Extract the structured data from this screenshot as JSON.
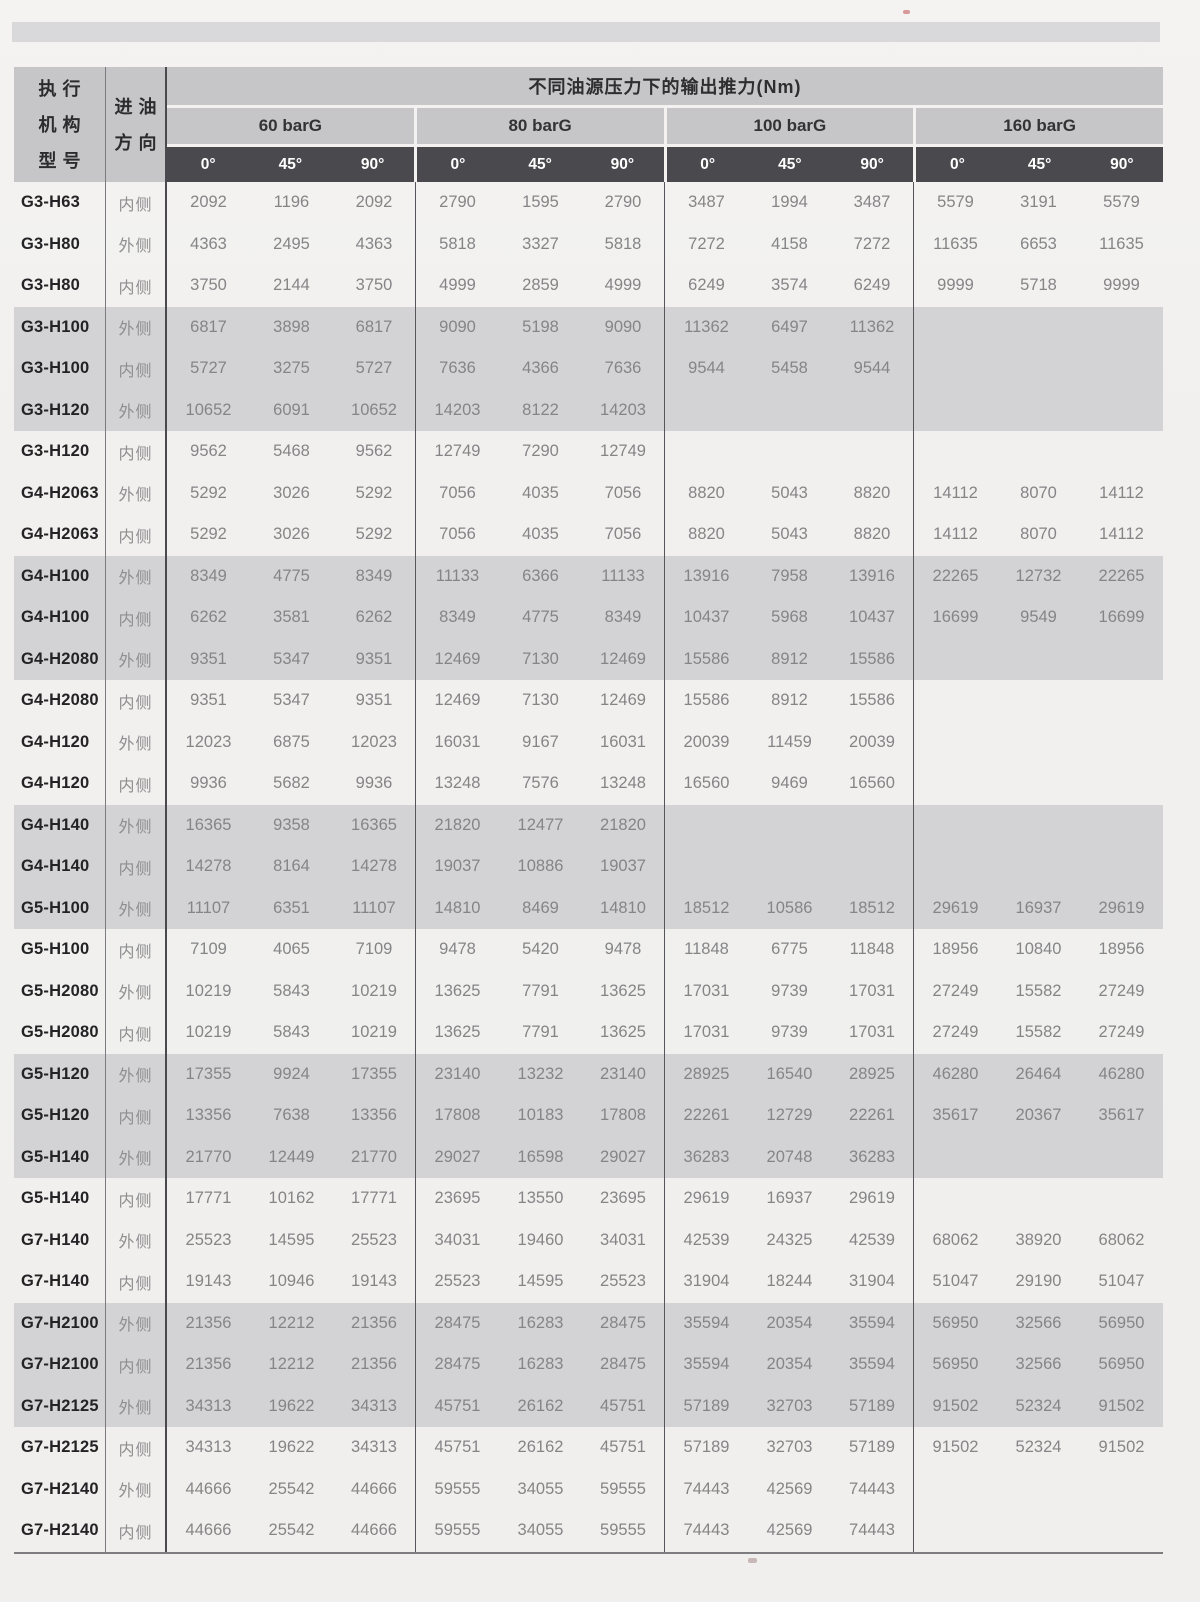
{
  "page": {
    "table_title": "不同油源压力下的输出推力(Nm)",
    "col1_header_lines": [
      "执行",
      "机构",
      "型号"
    ],
    "col2_header_lines": [
      "进油",
      "方向"
    ],
    "pressure_groups": [
      "60 barG",
      "80 barG",
      "100 barG",
      "160 barG"
    ],
    "angle_headers": [
      "0°",
      "45°",
      "90°"
    ]
  },
  "colors": {
    "header_gray": "#c6c6c9",
    "angle_bar_dark": "#4a4a4e",
    "row_shade_gray": "#d3d3d6",
    "page_background": "#f1f0ee",
    "value_text": "#858588",
    "model_text": "#232326"
  },
  "rows": [
    {
      "model": "G3-H63",
      "direction": "内侧",
      "shaded": false,
      "values": [
        "2092",
        "1196",
        "2092",
        "2790",
        "1595",
        "2790",
        "3487",
        "1994",
        "3487",
        "5579",
        "3191",
        "5579"
      ]
    },
    {
      "model": "G3-H80",
      "direction": "外侧",
      "shaded": false,
      "values": [
        "4363",
        "2495",
        "4363",
        "5818",
        "3327",
        "5818",
        "7272",
        "4158",
        "7272",
        "11635",
        "6653",
        "11635"
      ]
    },
    {
      "model": "G3-H80",
      "direction": "内侧",
      "shaded": false,
      "values": [
        "3750",
        "2144",
        "3750",
        "4999",
        "2859",
        "4999",
        "6249",
        "3574",
        "6249",
        "9999",
        "5718",
        "9999"
      ]
    },
    {
      "model": "G3-H100",
      "direction": "外侧",
      "shaded": true,
      "values": [
        "6817",
        "3898",
        "6817",
        "9090",
        "5198",
        "9090",
        "11362",
        "6497",
        "11362",
        "",
        "",
        ""
      ]
    },
    {
      "model": "G3-H100",
      "direction": "内侧",
      "shaded": true,
      "values": [
        "5727",
        "3275",
        "5727",
        "7636",
        "4366",
        "7636",
        "9544",
        "5458",
        "9544",
        "",
        "",
        ""
      ]
    },
    {
      "model": "G3-H120",
      "direction": "外侧",
      "shaded": true,
      "values": [
        "10652",
        "6091",
        "10652",
        "14203",
        "8122",
        "14203",
        "",
        "",
        "",
        "",
        "",
        ""
      ]
    },
    {
      "model": "G3-H120",
      "direction": "内侧",
      "shaded": false,
      "values": [
        "9562",
        "5468",
        "9562",
        "12749",
        "7290",
        "12749",
        "",
        "",
        "",
        "",
        "",
        ""
      ]
    },
    {
      "model": "G4-H2063",
      "direction": "外侧",
      "shaded": false,
      "values": [
        "5292",
        "3026",
        "5292",
        "7056",
        "4035",
        "7056",
        "8820",
        "5043",
        "8820",
        "14112",
        "8070",
        "14112"
      ]
    },
    {
      "model": "G4-H2063",
      "direction": "内侧",
      "shaded": false,
      "values": [
        "5292",
        "3026",
        "5292",
        "7056",
        "4035",
        "7056",
        "8820",
        "5043",
        "8820",
        "14112",
        "8070",
        "14112"
      ]
    },
    {
      "model": "G4-H100",
      "direction": "外侧",
      "shaded": true,
      "values": [
        "8349",
        "4775",
        "8349",
        "11133",
        "6366",
        "11133",
        "13916",
        "7958",
        "13916",
        "22265",
        "12732",
        "22265"
      ]
    },
    {
      "model": "G4-H100",
      "direction": "内侧",
      "shaded": true,
      "values": [
        "6262",
        "3581",
        "6262",
        "8349",
        "4775",
        "8349",
        "10437",
        "5968",
        "10437",
        "16699",
        "9549",
        "16699"
      ]
    },
    {
      "model": "G4-H2080",
      "direction": "外侧",
      "shaded": true,
      "values": [
        "9351",
        "5347",
        "9351",
        "12469",
        "7130",
        "12469",
        "15586",
        "8912",
        "15586",
        "",
        "",
        ""
      ]
    },
    {
      "model": "G4-H2080",
      "direction": "内侧",
      "shaded": false,
      "values": [
        "9351",
        "5347",
        "9351",
        "12469",
        "7130",
        "12469",
        "15586",
        "8912",
        "15586",
        "",
        "",
        ""
      ]
    },
    {
      "model": "G4-H120",
      "direction": "外侧",
      "shaded": false,
      "values": [
        "12023",
        "6875",
        "12023",
        "16031",
        "9167",
        "16031",
        "20039",
        "11459",
        "20039",
        "",
        "",
        ""
      ]
    },
    {
      "model": "G4-H120",
      "direction": "内侧",
      "shaded": false,
      "values": [
        "9936",
        "5682",
        "9936",
        "13248",
        "7576",
        "13248",
        "16560",
        "9469",
        "16560",
        "",
        "",
        ""
      ]
    },
    {
      "model": "G4-H140",
      "direction": "外侧",
      "shaded": true,
      "values": [
        "16365",
        "9358",
        "16365",
        "21820",
        "12477",
        "21820",
        "",
        "",
        "",
        "",
        "",
        ""
      ]
    },
    {
      "model": "G4-H140",
      "direction": "内侧",
      "shaded": true,
      "values": [
        "14278",
        "8164",
        "14278",
        "19037",
        "10886",
        "19037",
        "",
        "",
        "",
        "",
        "",
        ""
      ]
    },
    {
      "model": "G5-H100",
      "direction": "外侧",
      "shaded": true,
      "values": [
        "11107",
        "6351",
        "11107",
        "14810",
        "8469",
        "14810",
        "18512",
        "10586",
        "18512",
        "29619",
        "16937",
        "29619"
      ]
    },
    {
      "model": "G5-H100",
      "direction": "内侧",
      "shaded": false,
      "values": [
        "7109",
        "4065",
        "7109",
        "9478",
        "5420",
        "9478",
        "11848",
        "6775",
        "11848",
        "18956",
        "10840",
        "18956"
      ]
    },
    {
      "model": "G5-H2080",
      "direction": "外侧",
      "shaded": false,
      "values": [
        "10219",
        "5843",
        "10219",
        "13625",
        "7791",
        "13625",
        "17031",
        "9739",
        "17031",
        "27249",
        "15582",
        "27249"
      ]
    },
    {
      "model": "G5-H2080",
      "direction": "内侧",
      "shaded": false,
      "values": [
        "10219",
        "5843",
        "10219",
        "13625",
        "7791",
        "13625",
        "17031",
        "9739",
        "17031",
        "27249",
        "15582",
        "27249"
      ]
    },
    {
      "model": "G5-H120",
      "direction": "外侧",
      "shaded": true,
      "values": [
        "17355",
        "9924",
        "17355",
        "23140",
        "13232",
        "23140",
        "28925",
        "16540",
        "28925",
        "46280",
        "26464",
        "46280"
      ]
    },
    {
      "model": "G5-H120",
      "direction": "内侧",
      "shaded": true,
      "values": [
        "13356",
        "7638",
        "13356",
        "17808",
        "10183",
        "17808",
        "22261",
        "12729",
        "22261",
        "35617",
        "20367",
        "35617"
      ]
    },
    {
      "model": "G5-H140",
      "direction": "外侧",
      "shaded": true,
      "values": [
        "21770",
        "12449",
        "21770",
        "29027",
        "16598",
        "29027",
        "36283",
        "20748",
        "36283",
        "",
        "",
        ""
      ]
    },
    {
      "model": "G5-H140",
      "direction": "内侧",
      "shaded": false,
      "values": [
        "17771",
        "10162",
        "17771",
        "23695",
        "13550",
        "23695",
        "29619",
        "16937",
        "29619",
        "",
        "",
        ""
      ]
    },
    {
      "model": "G7-H140",
      "direction": "外侧",
      "shaded": false,
      "values": [
        "25523",
        "14595",
        "25523",
        "34031",
        "19460",
        "34031",
        "42539",
        "24325",
        "42539",
        "68062",
        "38920",
        "68062"
      ]
    },
    {
      "model": "G7-H140",
      "direction": "内侧",
      "shaded": false,
      "values": [
        "19143",
        "10946",
        "19143",
        "25523",
        "14595",
        "25523",
        "31904",
        "18244",
        "31904",
        "51047",
        "29190",
        "51047"
      ]
    },
    {
      "model": "G7-H2100",
      "direction": "外侧",
      "shaded": true,
      "values": [
        "21356",
        "12212",
        "21356",
        "28475",
        "16283",
        "28475",
        "35594",
        "20354",
        "35594",
        "56950",
        "32566",
        "56950"
      ]
    },
    {
      "model": "G7-H2100",
      "direction": "内侧",
      "shaded": true,
      "values": [
        "21356",
        "12212",
        "21356",
        "28475",
        "16283",
        "28475",
        "35594",
        "20354",
        "35594",
        "56950",
        "32566",
        "56950"
      ]
    },
    {
      "model": "G7-H2125",
      "direction": "外侧",
      "shaded": true,
      "values": [
        "34313",
        "19622",
        "34313",
        "45751",
        "26162",
        "45751",
        "57189",
        "32703",
        "57189",
        "91502",
        "52324",
        "91502"
      ]
    },
    {
      "model": "G7-H2125",
      "direction": "内侧",
      "shaded": false,
      "values": [
        "34313",
        "19622",
        "34313",
        "45751",
        "26162",
        "45751",
        "57189",
        "32703",
        "57189",
        "91502",
        "52324",
        "91502"
      ]
    },
    {
      "model": "G7-H2140",
      "direction": "外侧",
      "shaded": false,
      "values": [
        "44666",
        "25542",
        "44666",
        "59555",
        "34055",
        "59555",
        "74443",
        "42569",
        "74443",
        "",
        "",
        ""
      ]
    },
    {
      "model": "G7-H2140",
      "direction": "内侧",
      "shaded": false,
      "values": [
        "44666",
        "25542",
        "44666",
        "59555",
        "34055",
        "59555",
        "74443",
        "42569",
        "74443",
        "",
        "",
        ""
      ]
    }
  ]
}
